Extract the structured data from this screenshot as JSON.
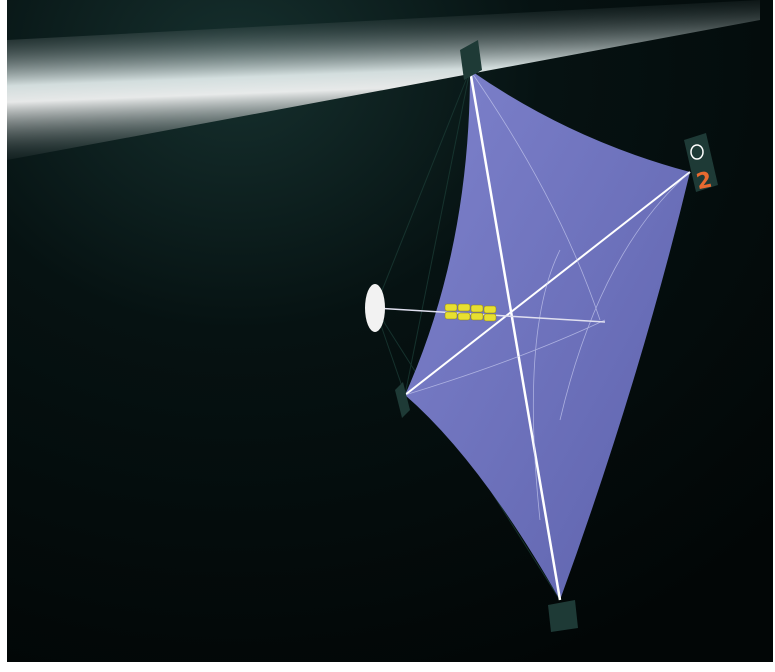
{
  "image": {
    "panel_label": "2"
  }
}
